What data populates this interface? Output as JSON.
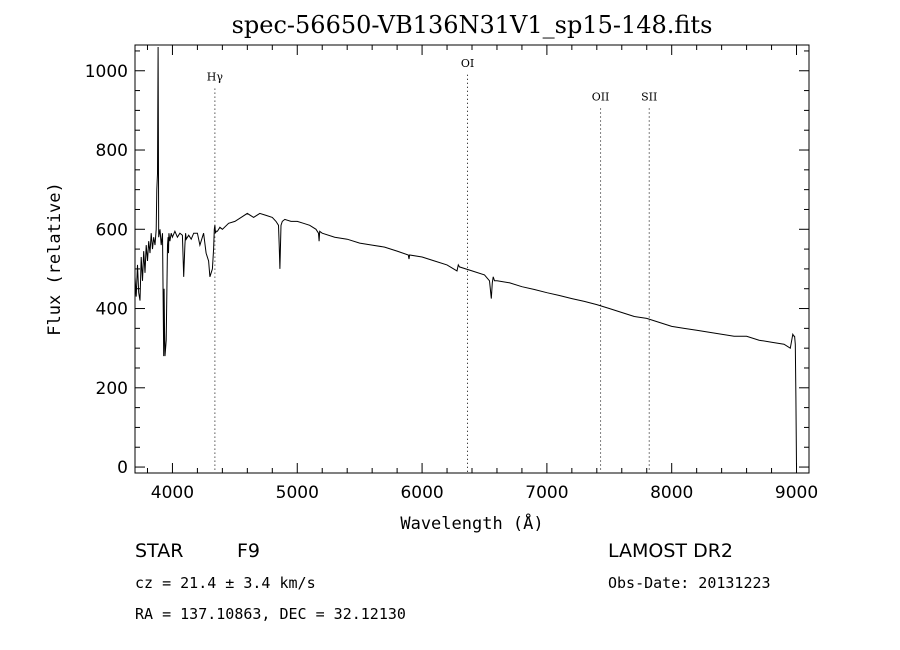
{
  "chart_data": {
    "type": "line",
    "title": "spec-56650-VB136N31V1_sp15-148.fits",
    "xlabel": "Wavelength (Å)",
    "ylabel": "Flux (relative)",
    "xlim": [
      3700,
      9100
    ],
    "ylim": [
      -15,
      1065
    ],
    "x_ticks": [
      4000,
      5000,
      6000,
      7000,
      8000,
      9000
    ],
    "y_ticks": [
      0,
      200,
      400,
      600,
      800,
      1000
    ],
    "grid": false,
    "series": [
      {
        "x": [
          3700,
          3710,
          3720,
          3730,
          3740,
          3750,
          3760,
          3770,
          3780,
          3790,
          3800,
          3810,
          3820,
          3830,
          3840,
          3850,
          3860,
          3870,
          3875,
          3880,
          3885,
          3890,
          3900,
          3910,
          3920,
          3930,
          3933,
          3936,
          3940,
          3950,
          3960,
          3965,
          3968,
          3972,
          3980,
          3990,
          4000,
          4020,
          4040,
          4060,
          4080,
          4090,
          4100,
          4105,
          4110,
          4130,
          4150,
          4170,
          4200,
          4220,
          4250,
          4270,
          4290,
          4300,
          4320,
          4330,
          4335,
          4340,
          4345,
          4350,
          4360,
          4380,
          4400,
          4450,
          4500,
          4550,
          4600,
          4650,
          4700,
          4750,
          4800,
          4830,
          4850,
          4855,
          4861,
          4866,
          4870,
          4880,
          4900,
          4950,
          5000,
          5050,
          5100,
          5150,
          5170,
          5175,
          5180,
          5200,
          5300,
          5400,
          5500,
          5600,
          5700,
          5800,
          5890,
          5895,
          5900,
          6000,
          6100,
          6200,
          6280,
          6290,
          6300,
          6400,
          6500,
          6540,
          6555,
          6563,
          6570,
          6580,
          6600,
          6700,
          6800,
          6900,
          7000,
          7100,
          7200,
          7300,
          7400,
          7500,
          7600,
          7700,
          7800,
          7900,
          8000,
          8100,
          8200,
          8300,
          8400,
          8500,
          8600,
          8700,
          8800,
          8900,
          8950,
          8970,
          8980,
          8985,
          8990,
          8995,
          9000
        ],
        "y": [
          480,
          430,
          510,
          440,
          420,
          530,
          470,
          545,
          490,
          560,
          520,
          570,
          540,
          590,
          550,
          580,
          560,
          600,
          700,
          740,
          1060,
          580,
          600,
          560,
          590,
          280,
          450,
          350,
          280,
          320,
          560,
          580,
          540,
          590,
          570,
          590,
          580,
          595,
          580,
          590,
          585,
          480,
          560,
          590,
          575,
          585,
          575,
          590,
          590,
          560,
          590,
          540,
          520,
          480,
          500,
          550,
          600,
          610,
          590,
          595,
          595,
          605,
          600,
          615,
          620,
          630,
          640,
          630,
          640,
          635,
          630,
          620,
          610,
          560,
          500,
          560,
          610,
          620,
          625,
          620,
          620,
          615,
          610,
          600,
          590,
          570,
          595,
          590,
          580,
          575,
          565,
          560,
          555,
          545,
          535,
          525,
          535,
          530,
          520,
          510,
          495,
          510,
          505,
          495,
          485,
          470,
          425,
          465,
          480,
          470,
          470,
          465,
          455,
          448,
          440,
          433,
          425,
          418,
          410,
          400,
          390,
          380,
          375,
          365,
          355,
          350,
          345,
          340,
          335,
          330,
          330,
          320,
          315,
          310,
          300,
          335,
          330,
          330,
          310,
          175,
          0
        ],
        "color": "#000000"
      }
    ],
    "annotations": [
      {
        "label": "Hγ",
        "x": 4340,
        "label_y": 975
      },
      {
        "label": "OI",
        "x": 6364,
        "label_y": 1010
      },
      {
        "label": "OII",
        "x": 7430,
        "label_y": 925
      },
      {
        "label": "SII",
        "x": 7820,
        "label_y": 925
      }
    ],
    "footer": {
      "object_type": "STAR",
      "subclass": "F9",
      "survey": "LAMOST DR2",
      "cz": "cz = 21.4 ± 3.4 km/s",
      "obs_date": "Obs-Date: 20131223",
      "coords": "RA = 137.10863, DEC =  32.12130"
    }
  }
}
